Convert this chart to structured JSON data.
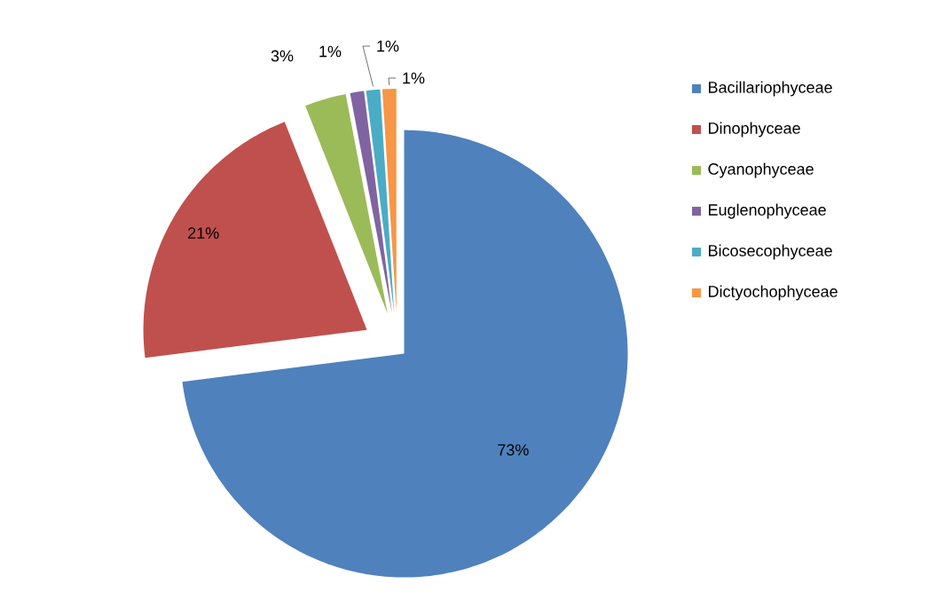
{
  "chart_data": {
    "type": "pie",
    "categories": [
      "Bacillariophyceae",
      "Dinophyceae",
      "Cyanophyceae",
      "Euglenophyceae",
      "Bicosecophyceae",
      "Dictyochophyceae"
    ],
    "values": [
      73,
      21,
      3,
      1,
      1,
      1
    ],
    "colors": [
      "#4f81bd",
      "#c0504d",
      "#9bbb59",
      "#8064a2",
      "#4bacc6",
      "#f79646"
    ],
    "value_labels": [
      "73%",
      "21%",
      "3%",
      "1%",
      "1%",
      "1%"
    ],
    "legend": "right"
  }
}
